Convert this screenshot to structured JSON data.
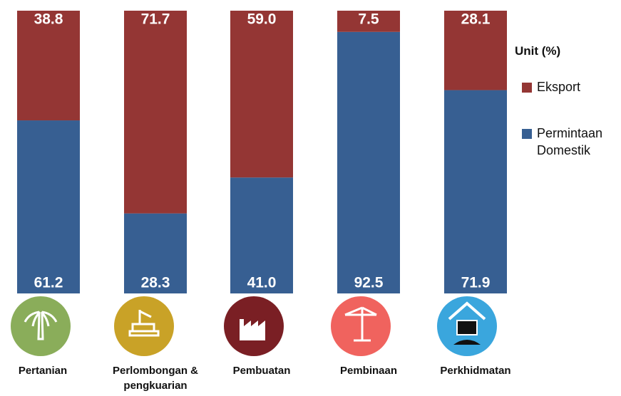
{
  "chart_data": {
    "type": "stacked-bar",
    "categories": [
      "Pertanian",
      "Perlombongan & pengkuarian",
      "Pembuatan",
      "Pembinaan",
      "Perkhidmatan"
    ],
    "series": [
      {
        "name": "Permintaan Domestik",
        "color": "#375f92",
        "values": [
          61.2,
          28.3,
          41.0,
          92.5,
          71.9
        ],
        "value_labels": [
          "61.2",
          "28.3",
          "41.0",
          "92.5",
          "71.9"
        ]
      },
      {
        "name": "Eksport",
        "color": "#943634",
        "values": [
          38.8,
          71.7,
          59.0,
          7.5,
          28.1
        ],
        "value_labels": [
          "38.8",
          "71.7",
          "59.0",
          "7.5",
          "28.1"
        ]
      }
    ],
    "legend_title": "Unit (%)",
    "legend": "right"
  }
}
